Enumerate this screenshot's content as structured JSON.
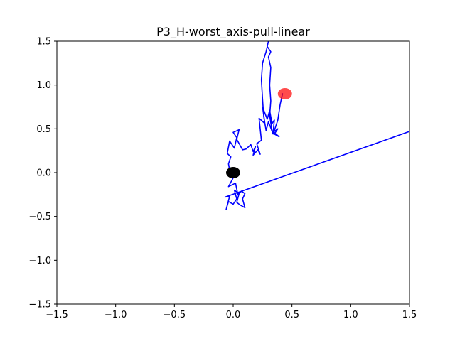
{
  "chart_data": {
    "type": "line",
    "title": "P3_H-worst_axis-pull-linear",
    "xlabel": "",
    "ylabel": "",
    "xlim": [
      -1.5,
      1.5
    ],
    "ylim": [
      -1.5,
      1.5
    ],
    "x_ticks": [
      -1.5,
      -1.0,
      -0.5,
      0.0,
      0.5,
      1.0,
      1.5
    ],
    "y_ticks": [
      -1.5,
      -1.0,
      -0.5,
      0.0,
      0.5,
      1.0,
      1.5
    ],
    "x_tick_labels": [
      "−1.5",
      "−1.0",
      "−0.5",
      "0.0",
      "0.5",
      "1.0",
      "1.5"
    ],
    "y_tick_labels": [
      "−1.5",
      "−1.0",
      "−0.5",
      "0.0",
      "0.5",
      "1.0",
      "1.5"
    ],
    "grid": false,
    "legend": "none",
    "series": [
      {
        "kind": "trajectory",
        "color": "#0000ff",
        "points": [
          [
            1.5,
            0.47
          ],
          [
            -0.07,
            -0.28
          ],
          [
            -0.03,
            -0.27
          ],
          [
            -0.06,
            -0.42
          ],
          [
            -0.04,
            -0.33
          ],
          [
            0.0,
            -0.36
          ],
          [
            0.03,
            -0.3
          ],
          [
            0.01,
            -0.2
          ],
          [
            0.05,
            -0.24
          ],
          [
            0.03,
            -0.34
          ],
          [
            0.06,
            -0.37
          ],
          [
            0.1,
            -0.4
          ],
          [
            0.08,
            -0.3
          ],
          [
            0.1,
            -0.24
          ],
          [
            0.07,
            -0.21
          ],
          [
            0.04,
            -0.25
          ],
          [
            0.02,
            -0.12
          ],
          [
            -0.04,
            -0.16
          ],
          [
            0.0,
            -0.06
          ],
          [
            -0.03,
            0.03
          ],
          [
            -0.04,
            0.1
          ],
          [
            -0.02,
            0.18
          ],
          [
            -0.05,
            0.22
          ],
          [
            -0.03,
            0.36
          ],
          [
            0.01,
            0.28
          ],
          [
            0.03,
            0.4
          ],
          [
            0.0,
            0.46
          ],
          [
            0.05,
            0.49
          ],
          [
            0.03,
            0.38
          ],
          [
            0.08,
            0.26
          ],
          [
            0.11,
            0.27
          ],
          [
            0.15,
            0.32
          ],
          [
            0.17,
            0.24
          ],
          [
            0.19,
            0.3
          ],
          [
            0.17,
            0.2
          ],
          [
            0.21,
            0.26
          ],
          [
            0.23,
            0.21
          ],
          [
            0.2,
            0.33
          ],
          [
            0.24,
            0.37
          ],
          [
            0.22,
            0.62
          ],
          [
            0.27,
            0.56
          ],
          [
            0.25,
            0.75
          ],
          [
            0.29,
            0.61
          ],
          [
            0.31,
            0.71
          ],
          [
            0.33,
            0.56
          ],
          [
            0.35,
            0.6
          ],
          [
            0.34,
            0.46
          ],
          [
            0.38,
            0.5
          ],
          [
            0.35,
            0.44
          ],
          [
            0.39,
            0.41
          ],
          [
            0.33,
            0.48
          ],
          [
            0.31,
            0.65
          ],
          [
            0.32,
            0.82
          ],
          [
            0.31,
            1.0
          ],
          [
            0.32,
            1.2
          ],
          [
            0.3,
            1.32
          ],
          [
            0.32,
            1.38
          ],
          [
            0.29,
            1.44
          ],
          [
            0.3,
            1.5
          ],
          [
            0.28,
            1.38
          ],
          [
            0.25,
            1.25
          ],
          [
            0.24,
            1.06
          ],
          [
            0.25,
            0.84
          ],
          [
            0.26,
            0.64
          ],
          [
            0.28,
            0.48
          ],
          [
            0.3,
            0.58
          ],
          [
            0.34,
            0.44
          ],
          [
            0.36,
            0.52
          ],
          [
            0.38,
            0.6
          ],
          [
            0.4,
            0.78
          ],
          [
            0.42,
            0.9
          ]
        ]
      }
    ],
    "markers": [
      {
        "name": "start",
        "x": 0.0,
        "y": 0.0,
        "color": "#000000"
      },
      {
        "name": "goal",
        "x": 0.44,
        "y": 0.9,
        "color": "#ff0000",
        "opacity": 0.7
      }
    ]
  }
}
